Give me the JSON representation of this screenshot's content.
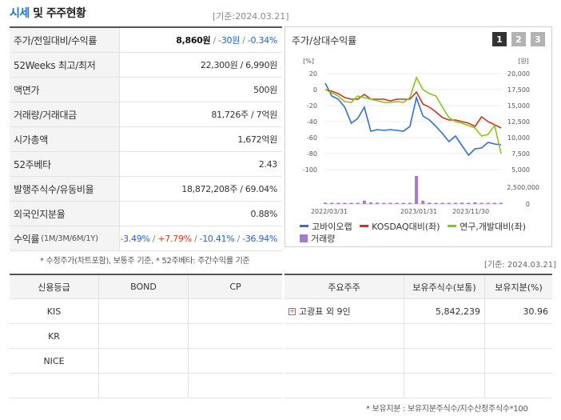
{
  "header": {
    "title_accent": "시세",
    "title_rest": " 및 주주현황",
    "ref_date": "[기준:2024.03.21]"
  },
  "price_table": {
    "rows": [
      {
        "label": "주가/전일대비/수익률",
        "value_main": "8,860원",
        "sep1": " / ",
        "value_change": "-30원",
        "sep2": " / ",
        "value_pct": "-0.34%"
      },
      {
        "label": "52Weeks 최고/최저",
        "value": "22,300원 / 6,990원"
      },
      {
        "label": "액면가",
        "value": "500원"
      },
      {
        "label": "거래량/거래대금",
        "value": "81,726주 / 7억원"
      },
      {
        "label": "시가총액",
        "value": "1,672억원"
      },
      {
        "label": "52주베타",
        "value": "2.43"
      },
      {
        "label": "발행주식수/유동비율",
        "value": "18,872,208주 / 69.04%"
      },
      {
        "label": "외국인지분율",
        "value": "0.88%"
      },
      {
        "label": "수익률",
        "label_small": "(1M/3M/6M/1Y)",
        "r1": "-3.49%",
        "r2": "+7.79%",
        "r3": "-10.41%",
        "r4": "-36.94%",
        "sep": " / "
      }
    ],
    "note": "* 수정주가(차트포함), 보통주 기준, * 52주베타: 주간수익률 기준"
  },
  "chart_panel": {
    "title": "주가/상대수익률",
    "tabs": [
      "1",
      "2",
      "3"
    ],
    "active_tab": "1",
    "legend": [
      {
        "label": "고바이오랩",
        "color": "#2f6fd6",
        "kind": "line"
      },
      {
        "label": "KOSDAQ대비(좌)",
        "color": "#c8361e",
        "kind": "line"
      },
      {
        "label": "연구,개발대비(좌)",
        "color": "#8cc21c",
        "kind": "line"
      },
      {
        "label": "거래량",
        "color": "#a679d2",
        "kind": "box"
      }
    ],
    "ref_date": "[기준: 2024.03.21]"
  },
  "chart_data": {
    "type": "line",
    "left_unit": "[%]",
    "right_unit": "[원]",
    "left_ticks": [
      "20",
      "0",
      "-20",
      "-40",
      "-60",
      "-80",
      "-100"
    ],
    "right_price_ticks": [
      "20,000",
      "17,500",
      "15,000",
      "12,500",
      "10,000",
      "7,500",
      "5,000"
    ],
    "volume_ticks": [
      "2,500,000",
      "0"
    ],
    "x_labels": [
      "2022/03/31",
      "2023/01/31",
      "2023/11/30"
    ],
    "ylim_left": [
      -100,
      20
    ],
    "series": [
      {
        "name": "고바이오랩",
        "color": "#2f6fd6",
        "values": [
          8,
          -8,
          -12,
          -22,
          -42,
          -36,
          -22,
          -52,
          -50,
          -51,
          -50,
          -51,
          -52,
          -46,
          -10,
          -33,
          -38,
          -46,
          -55,
          -65,
          -58,
          -70,
          -82,
          -74,
          -73,
          -66,
          -68,
          -69
        ]
      },
      {
        "name": "KOSDAQ대비(좌)",
        "color": "#c8361e",
        "values": [
          0,
          -2,
          -5,
          -10,
          -12,
          -12,
          -6,
          -12,
          -12,
          -12,
          -14,
          -12,
          -12,
          -12,
          -3,
          -18,
          -22,
          -28,
          -35,
          -38,
          -38,
          -40,
          -42,
          -46,
          -34,
          -40,
          -44,
          -48
        ]
      },
      {
        "name": "연구,개발대비(좌)",
        "color": "#8cc21c",
        "values": [
          0,
          -4,
          -8,
          -15,
          -16,
          -8,
          -10,
          -12,
          -14,
          -16,
          -16,
          -15,
          -16,
          -10,
          15,
          0,
          -5,
          -8,
          -22,
          -35,
          -40,
          -42,
          -45,
          -48,
          -58,
          -56,
          -45,
          -80
        ]
      }
    ],
    "volume": [
      0.05,
      0.03,
      0.02,
      0.03,
      0.02,
      0.04,
      0.12,
      0.06,
      0.05,
      0.03,
      0.02,
      0.03,
      0.03,
      0.04,
      1.0,
      0.12,
      0.05,
      0.03,
      0.02,
      0.03,
      0.04,
      0.05,
      0.03,
      0.06,
      0.04,
      0.03,
      0.03,
      0.02
    ]
  },
  "credit_table": {
    "headers": [
      "신용등급",
      "BOND",
      "CP"
    ],
    "rows": [
      [
        "KIS",
        "",
        ""
      ],
      [
        "KR",
        "",
        ""
      ],
      [
        "NICE",
        "",
        ""
      ],
      [
        "",
        "",
        ""
      ]
    ]
  },
  "holder_table": {
    "headers": [
      "주요주주",
      "보유주식수(보통)",
      "보유지분(%)"
    ],
    "rows": [
      [
        "고광표 외 9인",
        "5,842,239",
        "30.96"
      ],
      [
        "",
        "",
        ""
      ],
      [
        "",
        "",
        ""
      ],
      [
        "",
        "",
        ""
      ]
    ],
    "note": "* 보유지분 : 보유지분주식수/지수산정주식수*100"
  }
}
